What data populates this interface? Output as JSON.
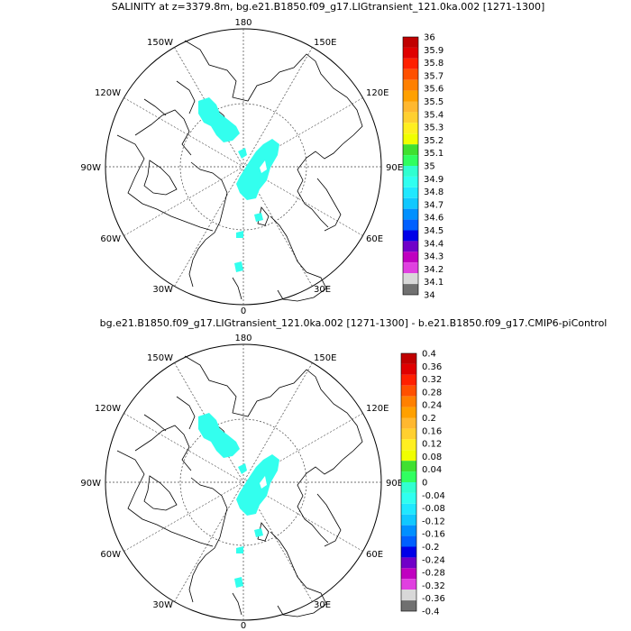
{
  "panels": [
    {
      "title": "SALINITY at z=3379.8m, bg.e21.B1850.f09_g17.LIGtransient_121.0ka.002 [1271-1300]",
      "lon_labels": [
        "180",
        "150E",
        "120E",
        "90E",
        "60E",
        "30E",
        "0",
        "30W",
        "60W",
        "90W",
        "120W",
        "150W"
      ],
      "colorbar": {
        "labels": [
          "36",
          "35.9",
          "35.8",
          "35.7",
          "35.6",
          "35.5",
          "35.4",
          "35.3",
          "35.2",
          "35.1",
          "35",
          "34.9",
          "34.8",
          "34.7",
          "34.6",
          "34.5",
          "34.4",
          "34.3",
          "34.2",
          "34.1",
          "34"
        ]
      }
    },
    {
      "title": "bg.e21.B1850.f09_g17.LIGtransient_121.0ka.002 [1271-1300] - b.e21.B1850.f09_g17.CMIP6-piControl",
      "lon_labels": [
        "180",
        "150E",
        "120E",
        "90E",
        "60E",
        "30E",
        "0",
        "30W",
        "60W",
        "90W",
        "120W",
        "150W"
      ],
      "colorbar": {
        "labels": [
          "0.4",
          "0.36",
          "0.32",
          "0.28",
          "0.24",
          "0.2",
          "0.16",
          "0.12",
          "0.08",
          "0.04",
          "0",
          "-0.04",
          "-0.08",
          "-0.12",
          "-0.16",
          "-0.2",
          "-0.24",
          "-0.28",
          "-0.32",
          "-0.36",
          "-0.4"
        ]
      }
    }
  ],
  "colors": {
    "data_fill": "#33ffee",
    "colorbar_palette": [
      "#c00000",
      "#e00000",
      "#ff2000",
      "#ff5000",
      "#ff8000",
      "#ffa000",
      "#ffb830",
      "#ffd030",
      "#ffef20",
      "#f0ff00",
      "#40e030",
      "#30ff60",
      "#30ffd0",
      "#30fff0",
      "#20e8ff",
      "#10c8ff",
      "#0090ff",
      "#0060ff",
      "#0000e8",
      "#7000c8",
      "#c000c0",
      "#e040e0",
      "#d8d8d8",
      "#707070"
    ]
  }
}
